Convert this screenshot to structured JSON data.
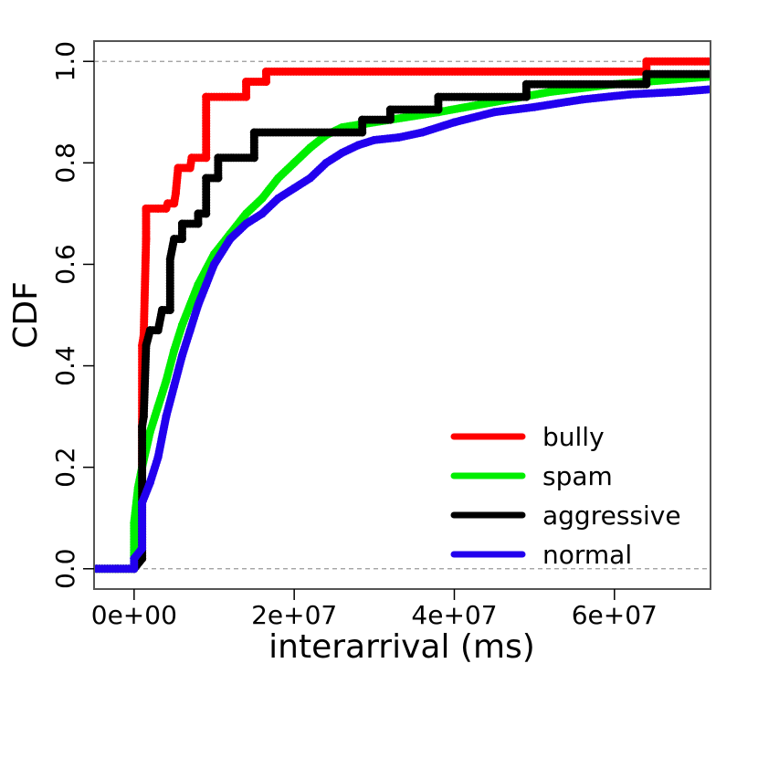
{
  "chart_data": {
    "type": "scatter",
    "title": "",
    "xlabel": "interarrival (ms)",
    "ylabel": "CDF",
    "xlim": [
      -5000000,
      72000000
    ],
    "ylim": [
      -0.04,
      1.04
    ],
    "x_ticks": [
      0,
      20000000,
      40000000,
      60000000
    ],
    "x_tick_labels": [
      "0e+00",
      "2e+07",
      "4e+07",
      "6e+07"
    ],
    "y_ticks": [
      0,
      0.2,
      0.4,
      0.6,
      0.8,
      1.0
    ],
    "y_tick_labels": [
      "0.0",
      "0.2",
      "0.4",
      "0.6",
      "0.8",
      "1.0"
    ],
    "reference_lines": [
      0,
      1
    ],
    "grid": false,
    "legend_position": "bottom-right",
    "series": [
      {
        "name": "bully",
        "color": "#ff0000",
        "points": [
          [
            1000000,
            0.02
          ],
          [
            1000000,
            0.44
          ],
          [
            1200000,
            0.46
          ],
          [
            1500000,
            0.65
          ],
          [
            1500000,
            0.71
          ],
          [
            3000000,
            0.71
          ],
          [
            4000000,
            0.71
          ],
          [
            4200000,
            0.72
          ],
          [
            5000000,
            0.72
          ],
          [
            5200000,
            0.74
          ],
          [
            5500000,
            0.79
          ],
          [
            7000000,
            0.79
          ],
          [
            7200000,
            0.81
          ],
          [
            9000000,
            0.81
          ],
          [
            9000000,
            0.93
          ],
          [
            14000000,
            0.93
          ],
          [
            14000000,
            0.96
          ],
          [
            16500000,
            0.96
          ],
          [
            16500000,
            0.98
          ],
          [
            64000000,
            0.98
          ],
          [
            64000000,
            1.0
          ],
          [
            72000000,
            1.0
          ]
        ]
      },
      {
        "name": "spam",
        "color": "#00ee00",
        "points": [
          [
            -5000000,
            0.0
          ],
          [
            0,
            0.0
          ],
          [
            0,
            0.09
          ],
          [
            500000,
            0.16
          ],
          [
            1000000,
            0.2
          ],
          [
            2000000,
            0.27
          ],
          [
            3000000,
            0.32
          ],
          [
            4000000,
            0.37
          ],
          [
            5000000,
            0.43
          ],
          [
            6000000,
            0.48
          ],
          [
            7000000,
            0.52
          ],
          [
            8000000,
            0.56
          ],
          [
            9000000,
            0.59
          ],
          [
            10000000,
            0.62
          ],
          [
            12000000,
            0.66
          ],
          [
            14000000,
            0.7
          ],
          [
            16000000,
            0.73
          ],
          [
            18000000,
            0.77
          ],
          [
            20000000,
            0.8
          ],
          [
            22000000,
            0.83
          ],
          [
            24000000,
            0.855
          ],
          [
            26000000,
            0.87
          ],
          [
            28000000,
            0.875
          ],
          [
            32000000,
            0.885
          ],
          [
            38000000,
            0.9
          ],
          [
            45000000,
            0.92
          ],
          [
            52000000,
            0.94
          ],
          [
            60000000,
            0.955
          ],
          [
            72000000,
            0.97
          ]
        ]
      },
      {
        "name": "aggressive",
        "color": "#000000",
        "points": [
          [
            -5000000,
            0.0
          ],
          [
            0,
            0.0
          ],
          [
            1000000,
            0.02
          ],
          [
            1000000,
            0.28
          ],
          [
            1200000,
            0.3
          ],
          [
            1500000,
            0.44
          ],
          [
            2000000,
            0.47
          ],
          [
            3000000,
            0.47
          ],
          [
            3500000,
            0.51
          ],
          [
            4500000,
            0.51
          ],
          [
            4500000,
            0.61
          ],
          [
            5000000,
            0.65
          ],
          [
            6000000,
            0.65
          ],
          [
            6000000,
            0.68
          ],
          [
            8000000,
            0.68
          ],
          [
            8000000,
            0.7
          ],
          [
            9000000,
            0.7
          ],
          [
            9000000,
            0.77
          ],
          [
            10500000,
            0.77
          ],
          [
            10500000,
            0.81
          ],
          [
            15000000,
            0.81
          ],
          [
            15000000,
            0.86
          ],
          [
            28500000,
            0.86
          ],
          [
            28500000,
            0.885
          ],
          [
            32000000,
            0.885
          ],
          [
            32000000,
            0.905
          ],
          [
            38000000,
            0.905
          ],
          [
            38000000,
            0.93
          ],
          [
            49000000,
            0.93
          ],
          [
            49000000,
            0.955
          ],
          [
            64000000,
            0.955
          ],
          [
            64000000,
            0.975
          ],
          [
            72000000,
            0.975
          ]
        ]
      },
      {
        "name": "normal",
        "color": "#2200ee",
        "points": [
          [
            -5000000,
            0.0
          ],
          [
            0,
            0.0
          ],
          [
            0,
            0.02
          ],
          [
            1000000,
            0.04
          ],
          [
            1000000,
            0.13
          ],
          [
            2000000,
            0.17
          ],
          [
            3000000,
            0.22
          ],
          [
            4000000,
            0.3
          ],
          [
            5000000,
            0.36
          ],
          [
            6000000,
            0.42
          ],
          [
            7000000,
            0.47
          ],
          [
            8000000,
            0.52
          ],
          [
            9000000,
            0.56
          ],
          [
            10000000,
            0.6
          ],
          [
            12000000,
            0.65
          ],
          [
            14000000,
            0.68
          ],
          [
            16000000,
            0.7
          ],
          [
            18000000,
            0.73
          ],
          [
            20000000,
            0.75
          ],
          [
            22000000,
            0.77
          ],
          [
            24000000,
            0.8
          ],
          [
            26000000,
            0.82
          ],
          [
            28000000,
            0.835
          ],
          [
            30000000,
            0.845
          ],
          [
            33000000,
            0.85
          ],
          [
            36000000,
            0.86
          ],
          [
            40000000,
            0.88
          ],
          [
            45000000,
            0.9
          ],
          [
            50000000,
            0.91
          ],
          [
            56000000,
            0.925
          ],
          [
            62000000,
            0.935
          ],
          [
            68000000,
            0.94
          ],
          [
            72000000,
            0.945
          ]
        ]
      }
    ]
  }
}
